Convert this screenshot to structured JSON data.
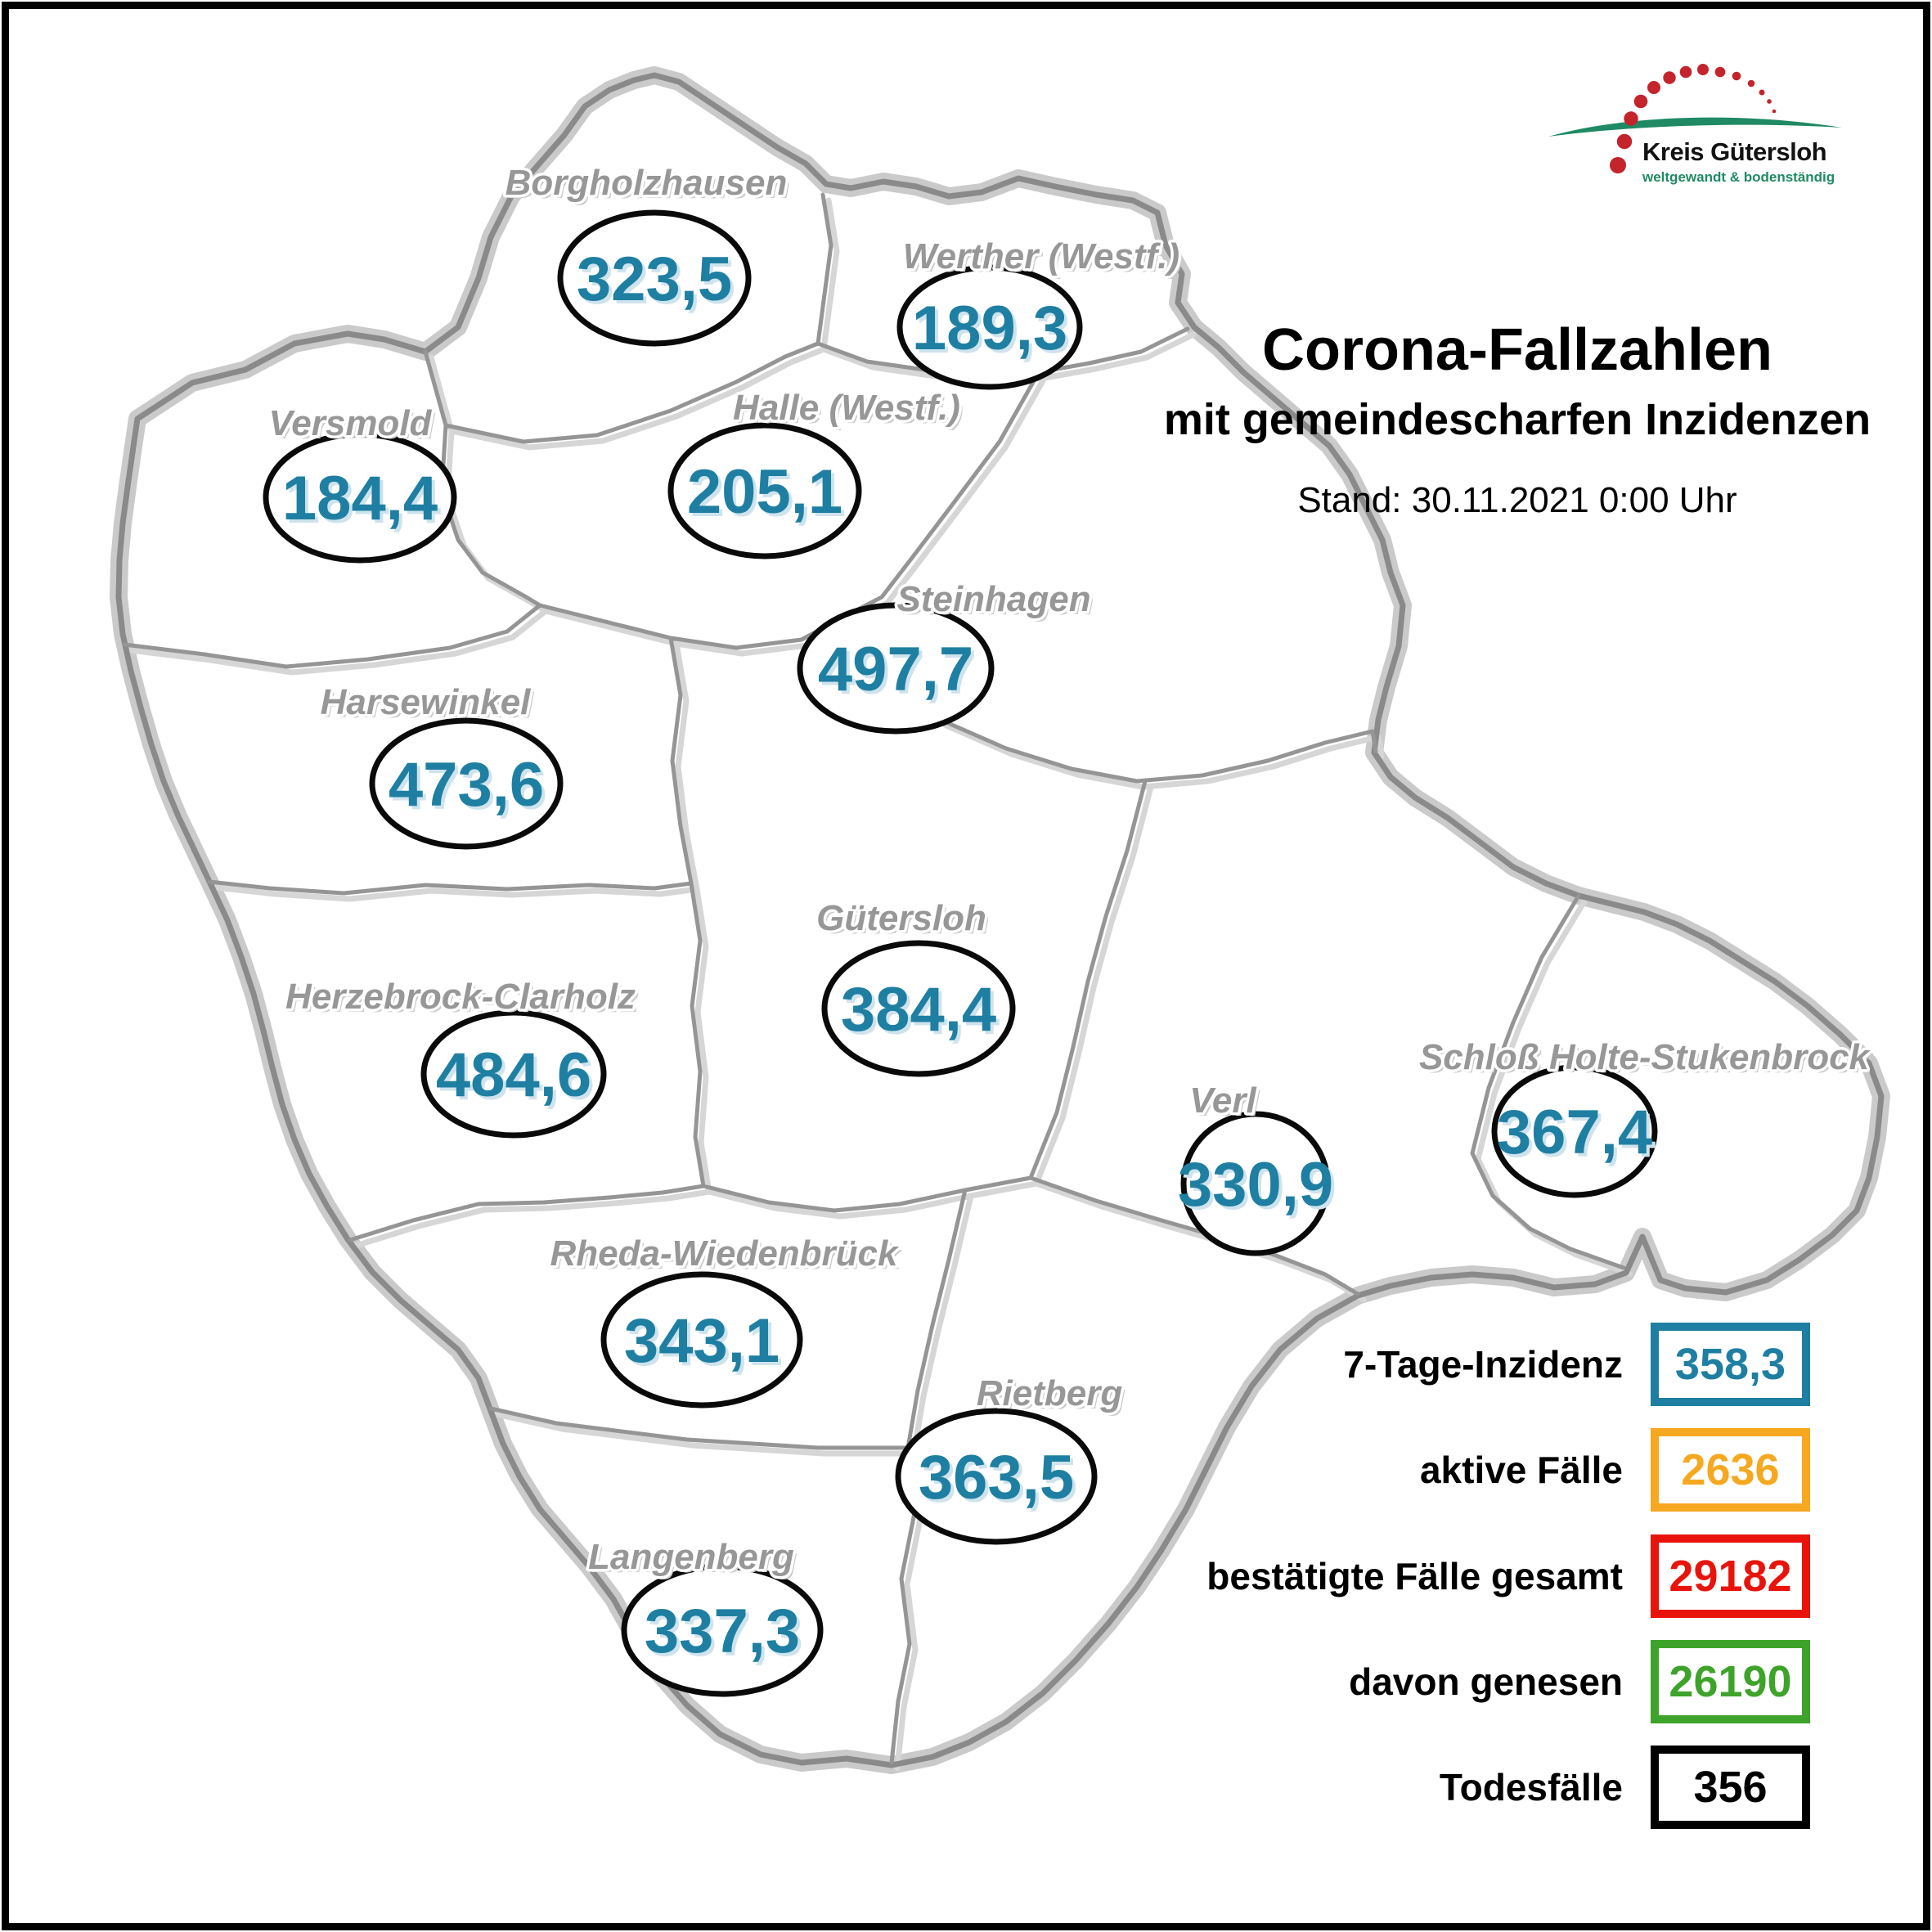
{
  "logo": {
    "title": "Kreis Gütersloh",
    "tagline": "weltgewandt & bodenständig",
    "brand_green": "#1f8a63",
    "dot_red": "#c4242c"
  },
  "header": {
    "title": "Corona-Fallzahlen",
    "subtitle": "mit gemeindescharfen Inzidenzen",
    "as_of": "Stand: 30.11.2021 0:00 Uhr"
  },
  "map": {
    "label_color": "#979797",
    "value_color": "#1e7fa2",
    "municipalities": [
      {
        "name": "Borgholzhausen",
        "incidence": "323,5"
      },
      {
        "name": "Werther (Westf.)",
        "incidence": "189,3"
      },
      {
        "name": "Versmold",
        "incidence": "184,4"
      },
      {
        "name": "Halle (Westf.)",
        "incidence": "205,1"
      },
      {
        "name": "Steinhagen",
        "incidence": "497,7"
      },
      {
        "name": "Harsewinkel",
        "incidence": "473,6"
      },
      {
        "name": "Gütersloh",
        "incidence": "384,4"
      },
      {
        "name": "Herzebrock-Clarholz",
        "incidence": "484,6"
      },
      {
        "name": "Verl",
        "incidence": "330,9"
      },
      {
        "name": "Schloß Holte-Stukenbrock",
        "incidence": "367,4"
      },
      {
        "name": "Rheda-Wiedenbrück",
        "incidence": "343,1"
      },
      {
        "name": "Rietberg",
        "incidence": "363,5"
      },
      {
        "name": "Langenberg",
        "incidence": "337,3"
      }
    ]
  },
  "legend": {
    "rows": [
      {
        "label": "7-Tage-Inzidenz",
        "value": "358,3",
        "color": "#1e7fa2"
      },
      {
        "label": "aktive Fälle",
        "value": "2636",
        "color": "#f6a820"
      },
      {
        "label": "bestätigte Fälle gesamt",
        "value": "29182",
        "color": "#e8140c"
      },
      {
        "label": "davon genesen",
        "value": "26190",
        "color": "#3ea32a"
      },
      {
        "label": "Todesfälle",
        "value": "356",
        "color": "#000000"
      }
    ]
  }
}
